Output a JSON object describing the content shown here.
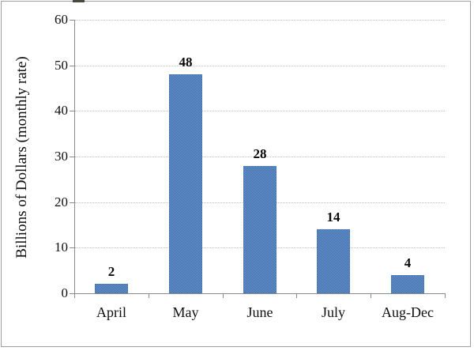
{
  "window": {
    "background": "#ffffff",
    "frame_border_color": "#9e9e9e"
  },
  "chart_data": {
    "type": "bar",
    "title": "",
    "ylabel": "Billions of Dollars (monthly rate)",
    "xlabel": "",
    "categories": [
      "April",
      "May",
      "June",
      "July",
      "Aug-Dec"
    ],
    "values": [
      2,
      48,
      28,
      14,
      4
    ],
    "data_labels": [
      "2",
      "48",
      "28",
      "14",
      "4"
    ],
    "ylim": [
      0,
      60
    ],
    "ytick_interval": 10,
    "yticks": [
      "0",
      "10",
      "20",
      "30",
      "40",
      "50",
      "60"
    ],
    "grid": "horizontal dotted gridlines every 10 units",
    "legend_position": "none",
    "colors": {
      "bar_fill": "#4f81bd",
      "bar_fill_dither_light": "#6794cf",
      "bar_fill_dither_dark": "#436fa9",
      "bar_border": "#4e7cb5",
      "axis": "#8a8a8a",
      "gridline": "#bfbfbf",
      "text": "#0f0f0f"
    }
  }
}
